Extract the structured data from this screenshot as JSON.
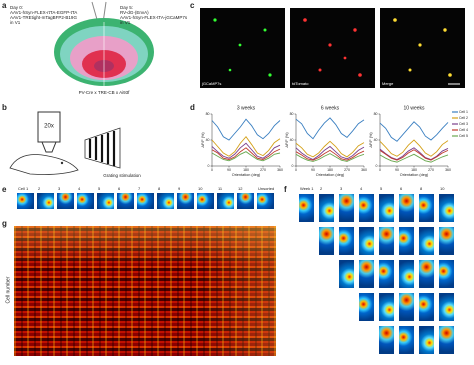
{
  "panels": {
    "a": {
      "letter": "a",
      "left_text": [
        "Day 0:",
        "AAV1-hSyn-FLEX-rtTA-EGFP-tTA",
        "AAV1-TREtight-mTagBFP2-B19G",
        "in V1"
      ],
      "right_text": [
        "Day 5:",
        "RV-dG-(EnvA)",
        "AAV1-hSyn-FLEX-tTA-jGCaMP7s",
        "in V1"
      ],
      "caption": "PV-Cre x TRE-CB x Ai93f"
    },
    "b": {
      "letter": "b",
      "objective": "20x",
      "caption": "Grating stimulation"
    },
    "c": {
      "letter": "c",
      "images": [
        "jGCaMP7s",
        "tdTomato",
        "Merge"
      ]
    },
    "d": {
      "letter": "d",
      "type": "line",
      "ylabel": "ΔF/F (%)",
      "xlabel": "Orientation (deg)",
      "x": [
        0,
        30,
        60,
        90,
        120,
        150,
        180,
        210,
        240,
        270,
        300,
        330,
        360
      ],
      "xlim": [
        0,
        360
      ],
      "xticks": [
        0,
        90,
        180,
        270,
        360
      ],
      "ylim": [
        0,
        80
      ],
      "yticks": [
        0,
        40,
        80
      ],
      "legend": "right",
      "series": [
        {
          "name": "Cell 1",
          "color": "#3a7fc1"
        },
        {
          "name": "Cell 2",
          "color": "#d4a017"
        },
        {
          "name": "Cell 3",
          "color": "#7b3f8c"
        },
        {
          "name": "Cell 4",
          "color": "#c0392b"
        },
        {
          "name": "Cell 5",
          "color": "#6aa84f"
        }
      ],
      "plots": [
        {
          "title": "3 weeks",
          "values": [
            [
              70,
              60,
              45,
              40,
              50,
              60,
              72,
              62,
              48,
              42,
              50,
              62,
              70
            ],
            [
              40,
              30,
              20,
              15,
              22,
              35,
              45,
              33,
              20,
              16,
              24,
              36,
              42
            ],
            [
              30,
              22,
              15,
              12,
              18,
              28,
              35,
              25,
              15,
              12,
              18,
              28,
              32
            ],
            [
              25,
              20,
              12,
              10,
              14,
              22,
              28,
              20,
              12,
              10,
              15,
              22,
              26
            ],
            [
              20,
              15,
              10,
              8,
              12,
              18,
              22,
              16,
              10,
              8,
              12,
              18,
              20
            ]
          ]
        },
        {
          "title": "6 weeks",
          "values": [
            [
              72,
              65,
              50,
              42,
              55,
              66,
              74,
              64,
              50,
              44,
              54,
              65,
              71
            ],
            [
              35,
              28,
              18,
              14,
              20,
              30,
              38,
              30,
              19,
              14,
              21,
              31,
              36
            ],
            [
              28,
              20,
              14,
              10,
              16,
              24,
              30,
              22,
              14,
              11,
              16,
              24,
              29
            ],
            [
              22,
              17,
              11,
              9,
              13,
              19,
              24,
              18,
              11,
              9,
              13,
              19,
              23
            ],
            [
              18,
              13,
              9,
              7,
              10,
              15,
              19,
              14,
              9,
              7,
              11,
              15,
              18
            ]
          ]
        },
        {
          "title": "10 weeks",
          "values": [
            [
              66,
              58,
              44,
              38,
              48,
              58,
              68,
              60,
              46,
              40,
              48,
              58,
              67
            ],
            [
              38,
              29,
              19,
              15,
              21,
              32,
              40,
              31,
              20,
              15,
              22,
              33,
              39
            ],
            [
              26,
              19,
              13,
              10,
              15,
              23,
              28,
              21,
              13,
              10,
              15,
              23,
              27
            ],
            [
              24,
              18,
              12,
              9,
              13,
              20,
              25,
              19,
              12,
              9,
              14,
              20,
              24
            ],
            [
              17,
              12,
              8,
              6,
              10,
              14,
              18,
              13,
              8,
              6,
              10,
              14,
              17
            ]
          ]
        }
      ]
    },
    "e": {
      "letter": "e",
      "cells": [
        "Cell 1",
        "2",
        "3",
        "4",
        "5",
        "6",
        "7",
        "8",
        "9",
        "10",
        "11",
        "12",
        "Unsorted"
      ]
    },
    "f": {
      "letter": "f",
      "weeks": [
        "Week 1",
        "2",
        "3",
        "4",
        "5",
        "6",
        "8",
        "10"
      ]
    },
    "g": {
      "letter": "g",
      "ylabel": "Cell number"
    }
  }
}
